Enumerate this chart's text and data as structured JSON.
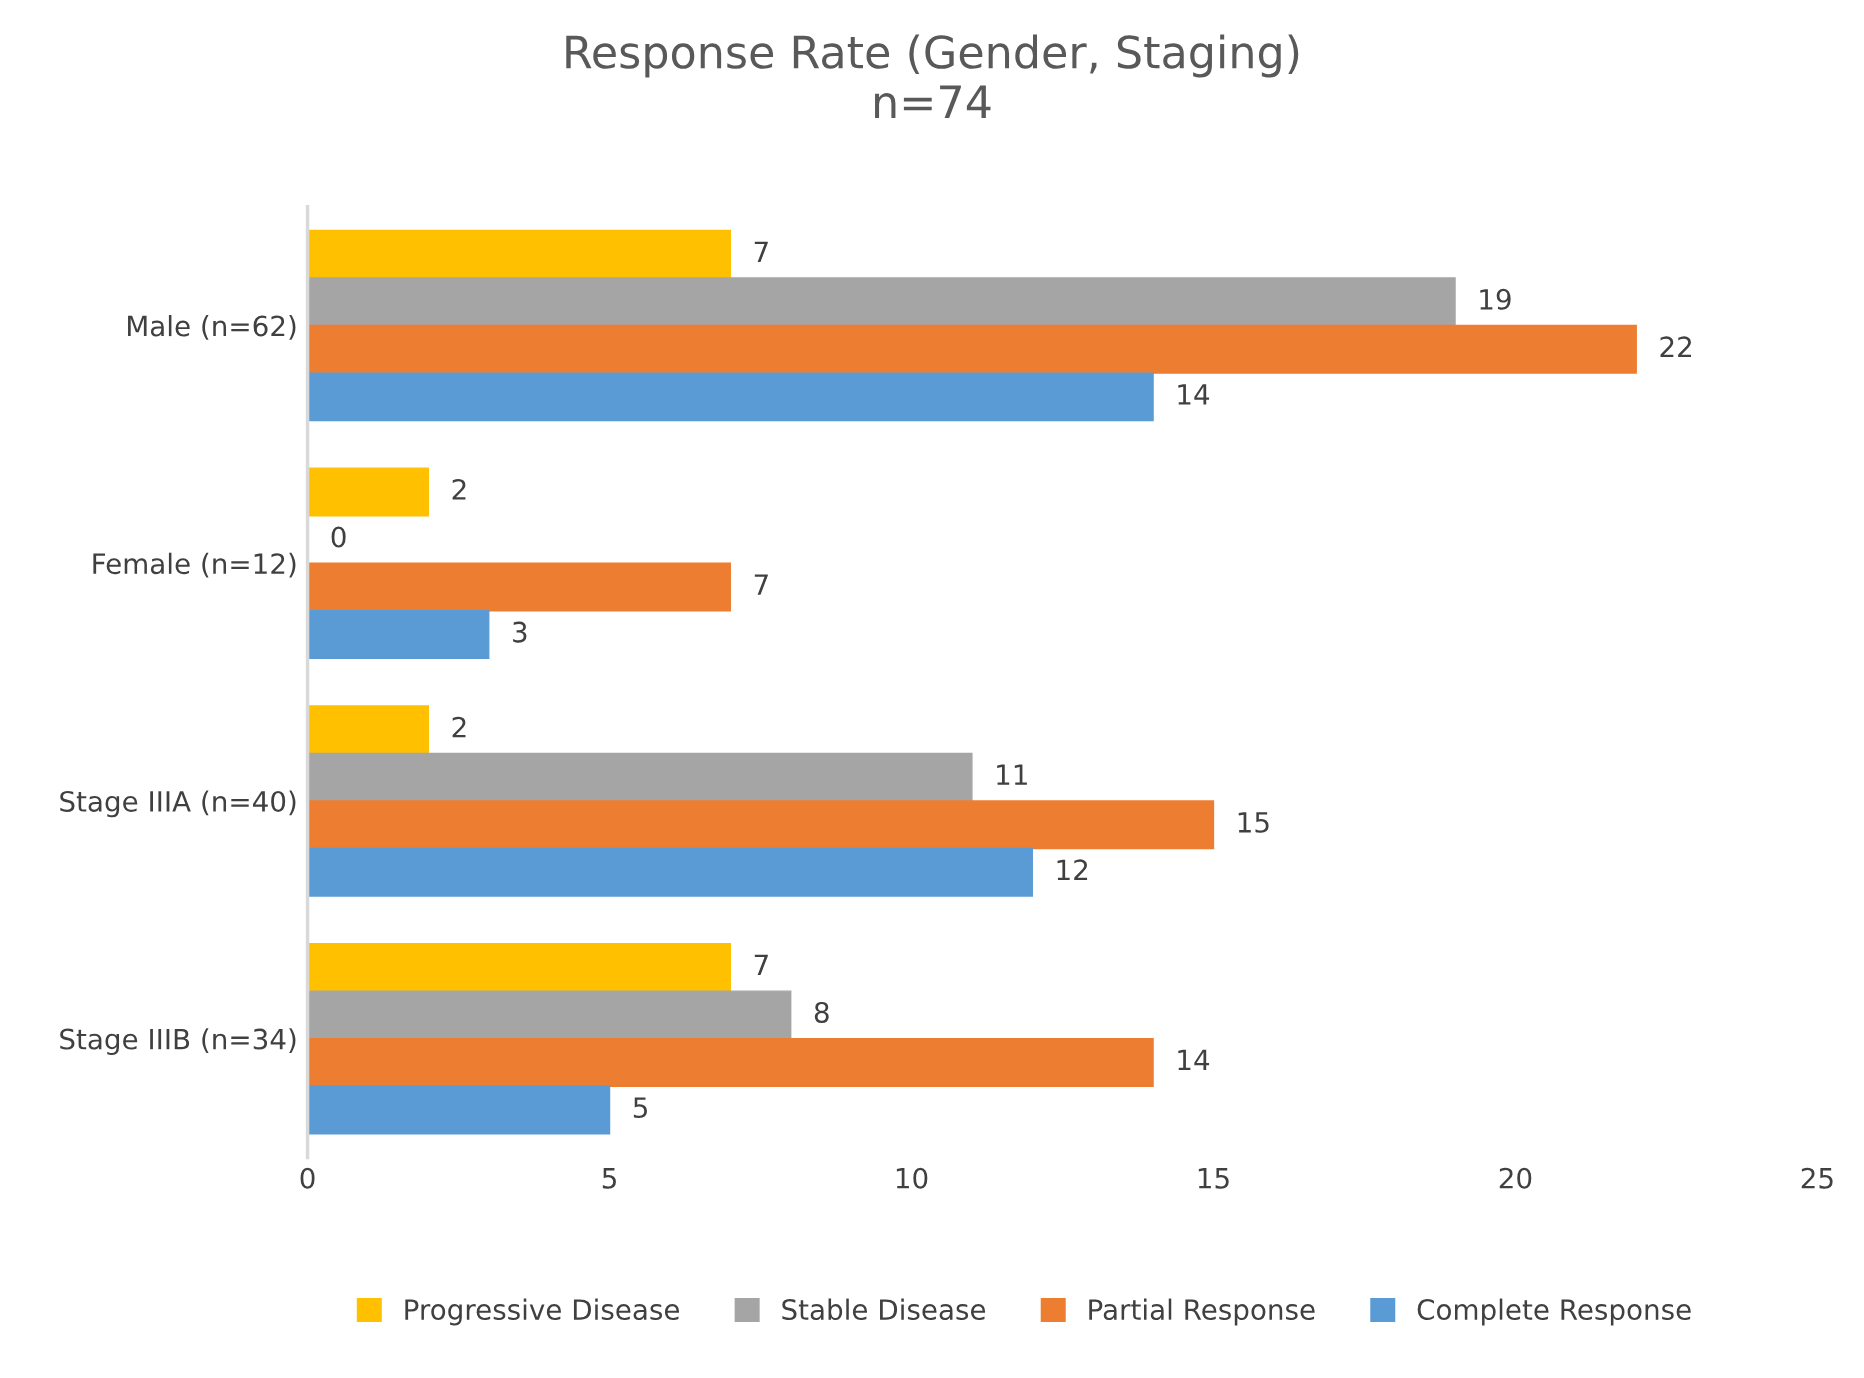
{
  "chart_data": {
    "type": "bar",
    "orientation": "horizontal",
    "title": "Response Rate (Gender, Staging)",
    "subtitle": "n=74",
    "categories": [
      "Male (n=62)",
      "Female (n=12)",
      "Stage IIIA (n=40)",
      "Stage IIIB (n=34)"
    ],
    "series": [
      {
        "name": "Progressive Disease",
        "color": "#ffc000",
        "values": [
          7,
          2,
          2,
          7
        ]
      },
      {
        "name": "Stable Disease",
        "color": "#a5a5a5",
        "values": [
          19,
          0,
          11,
          8
        ]
      },
      {
        "name": "Partial Response",
        "color": "#ed7d31",
        "values": [
          22,
          7,
          15,
          14
        ]
      },
      {
        "name": "Complete Response",
        "color": "#5b9bd5",
        "values": [
          14,
          3,
          12,
          5
        ]
      }
    ],
    "xlim": [
      0,
      25
    ],
    "xticks": [
      0,
      5,
      10,
      15,
      20,
      25
    ],
    "grid": false,
    "legend": "bottom",
    "data_labels": true
  }
}
